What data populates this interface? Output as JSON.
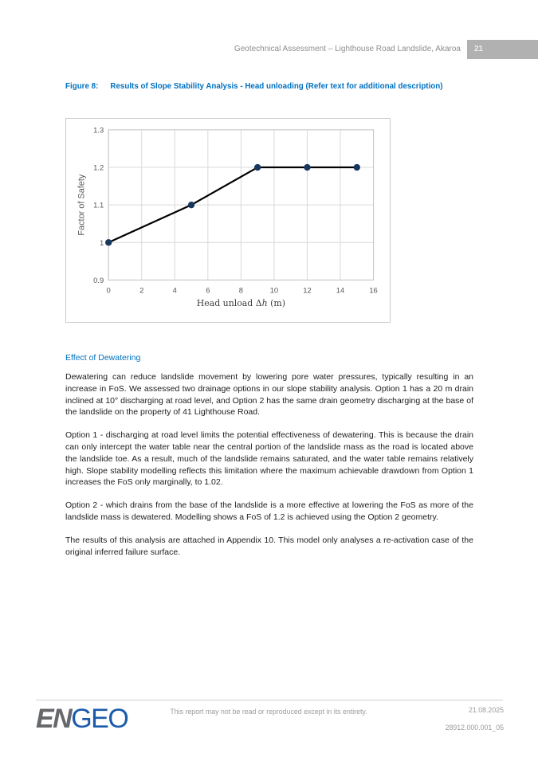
{
  "header": {
    "title": "Geotechnical Assessment – Lighthouse Road Landslide, Akaroa",
    "page_number": "21"
  },
  "figure": {
    "label": "Figure 8:",
    "caption": "Results of Slope Stability Analysis - Head unloading (Refer text for additional description)"
  },
  "chart_data": {
    "type": "line",
    "title": "",
    "xlabel": "Head unload Δh (m)",
    "xlabel_parts": {
      "prefix": "Head unload Δ",
      "italic": "h",
      "suffix": " (m)"
    },
    "ylabel": "Factor of Safety",
    "x": [
      0,
      5,
      9,
      12,
      15
    ],
    "series": [
      {
        "name": "Factor of Safety",
        "values": [
          1.0,
          1.1,
          1.2,
          1.2,
          1.2
        ]
      }
    ],
    "xlim": [
      0,
      16
    ],
    "ylim": [
      0.9,
      1.3
    ],
    "x_ticks": [
      0,
      2,
      4,
      6,
      8,
      10,
      12,
      14,
      16
    ],
    "y_tick_labels": [
      "0.9",
      "1",
      "1.1",
      "1.2",
      "1.3"
    ],
    "grid": true,
    "legend": "none",
    "line_color": "#000000",
    "marker_color": "#17375E",
    "grid_color": "#d9d9d9",
    "plot_border_color": "#c6c6c6"
  },
  "section": {
    "heading": "Effect of Dewatering",
    "paragraphs": [
      "Dewatering can reduce landslide movement by lowering pore water pressures, typically resulting in an increase in FoS. We assessed two drainage options in our slope stability analysis. Option 1 has a 20 m drain inclined at 10° discharging at road level, and Option 2 has the same drain geometry discharging at the base of the landslide on the property of 41 Lighthouse Road.",
      "Option 1 - discharging at road level limits the potential effectiveness of dewatering. This is because the drain can only intercept the water table near the central portion of the landslide mass as the road is located above the landslide toe. As a result, much of the landslide remains saturated, and the water table remains relatively high. Slope stability modelling reflects this limitation where the maximum achievable drawdown from Option 1 increases the FoS only marginally, to 1.02.",
      "Option 2 - which drains from the base of the landslide is a more effective at lowering the FoS as more of the landslide mass is dewatered. Modelling shows a FoS of 1.2 is achieved using the Option 2 geometry.",
      "The results of this analysis are attached in Appendix 10. This model only analyses a re-activation case of the original inferred failure surface."
    ]
  },
  "footer": {
    "logo": {
      "part1": "EN",
      "part2": "GEO"
    },
    "disclaimer": "This report may not be read or reproduced except in its entirety.",
    "date": "21.08.2025",
    "doc_number": "28912.000.001_05"
  },
  "colors": {
    "accent_blue": "#0070C0",
    "header_gray": "#8e8e8e",
    "badge_gray": "#b1b1b1",
    "logo_gray": "#66686B",
    "logo_blue": "#1B5BAB"
  }
}
